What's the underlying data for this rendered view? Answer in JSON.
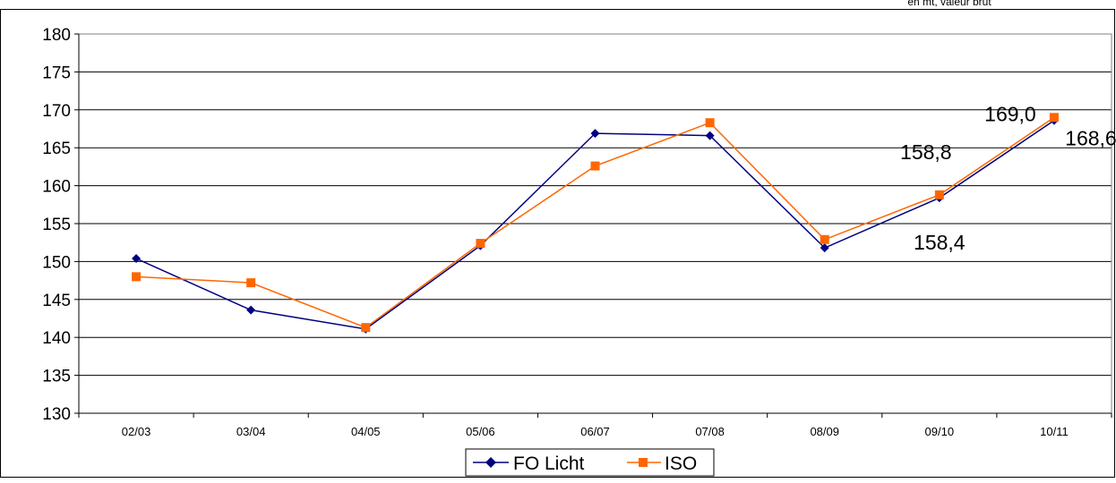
{
  "chart_data": {
    "type": "line",
    "corner_note": "en mt, valeur brut",
    "categories": [
      "02/03",
      "03/04",
      "04/05",
      "05/06",
      "06/07",
      "07/08",
      "08/09",
      "09/10",
      "10/11"
    ],
    "ylim": [
      130,
      180
    ],
    "yticks": [
      130,
      135,
      140,
      145,
      150,
      155,
      160,
      165,
      170,
      175,
      180
    ],
    "grid": true,
    "legend_position": "bottom",
    "series": [
      {
        "name": "FO Licht",
        "color": "#000080",
        "marker": "diamond",
        "values": [
          150.4,
          143.6,
          141.1,
          152.1,
          166.9,
          166.6,
          151.8,
          158.4,
          168.6
        ]
      },
      {
        "name": "ISO",
        "color": "#ff6600",
        "marker": "square",
        "values": [
          148.0,
          147.2,
          141.3,
          152.4,
          162.6,
          168.3,
          152.9,
          158.8,
          169.0
        ]
      }
    ],
    "data_labels": [
      {
        "series": 0,
        "index": 7,
        "text": "158,4"
      },
      {
        "series": 1,
        "index": 7,
        "text": "158,8"
      },
      {
        "series": 1,
        "index": 8,
        "text": "169,0"
      },
      {
        "series": 0,
        "index": 8,
        "text": "168,6"
      }
    ]
  }
}
